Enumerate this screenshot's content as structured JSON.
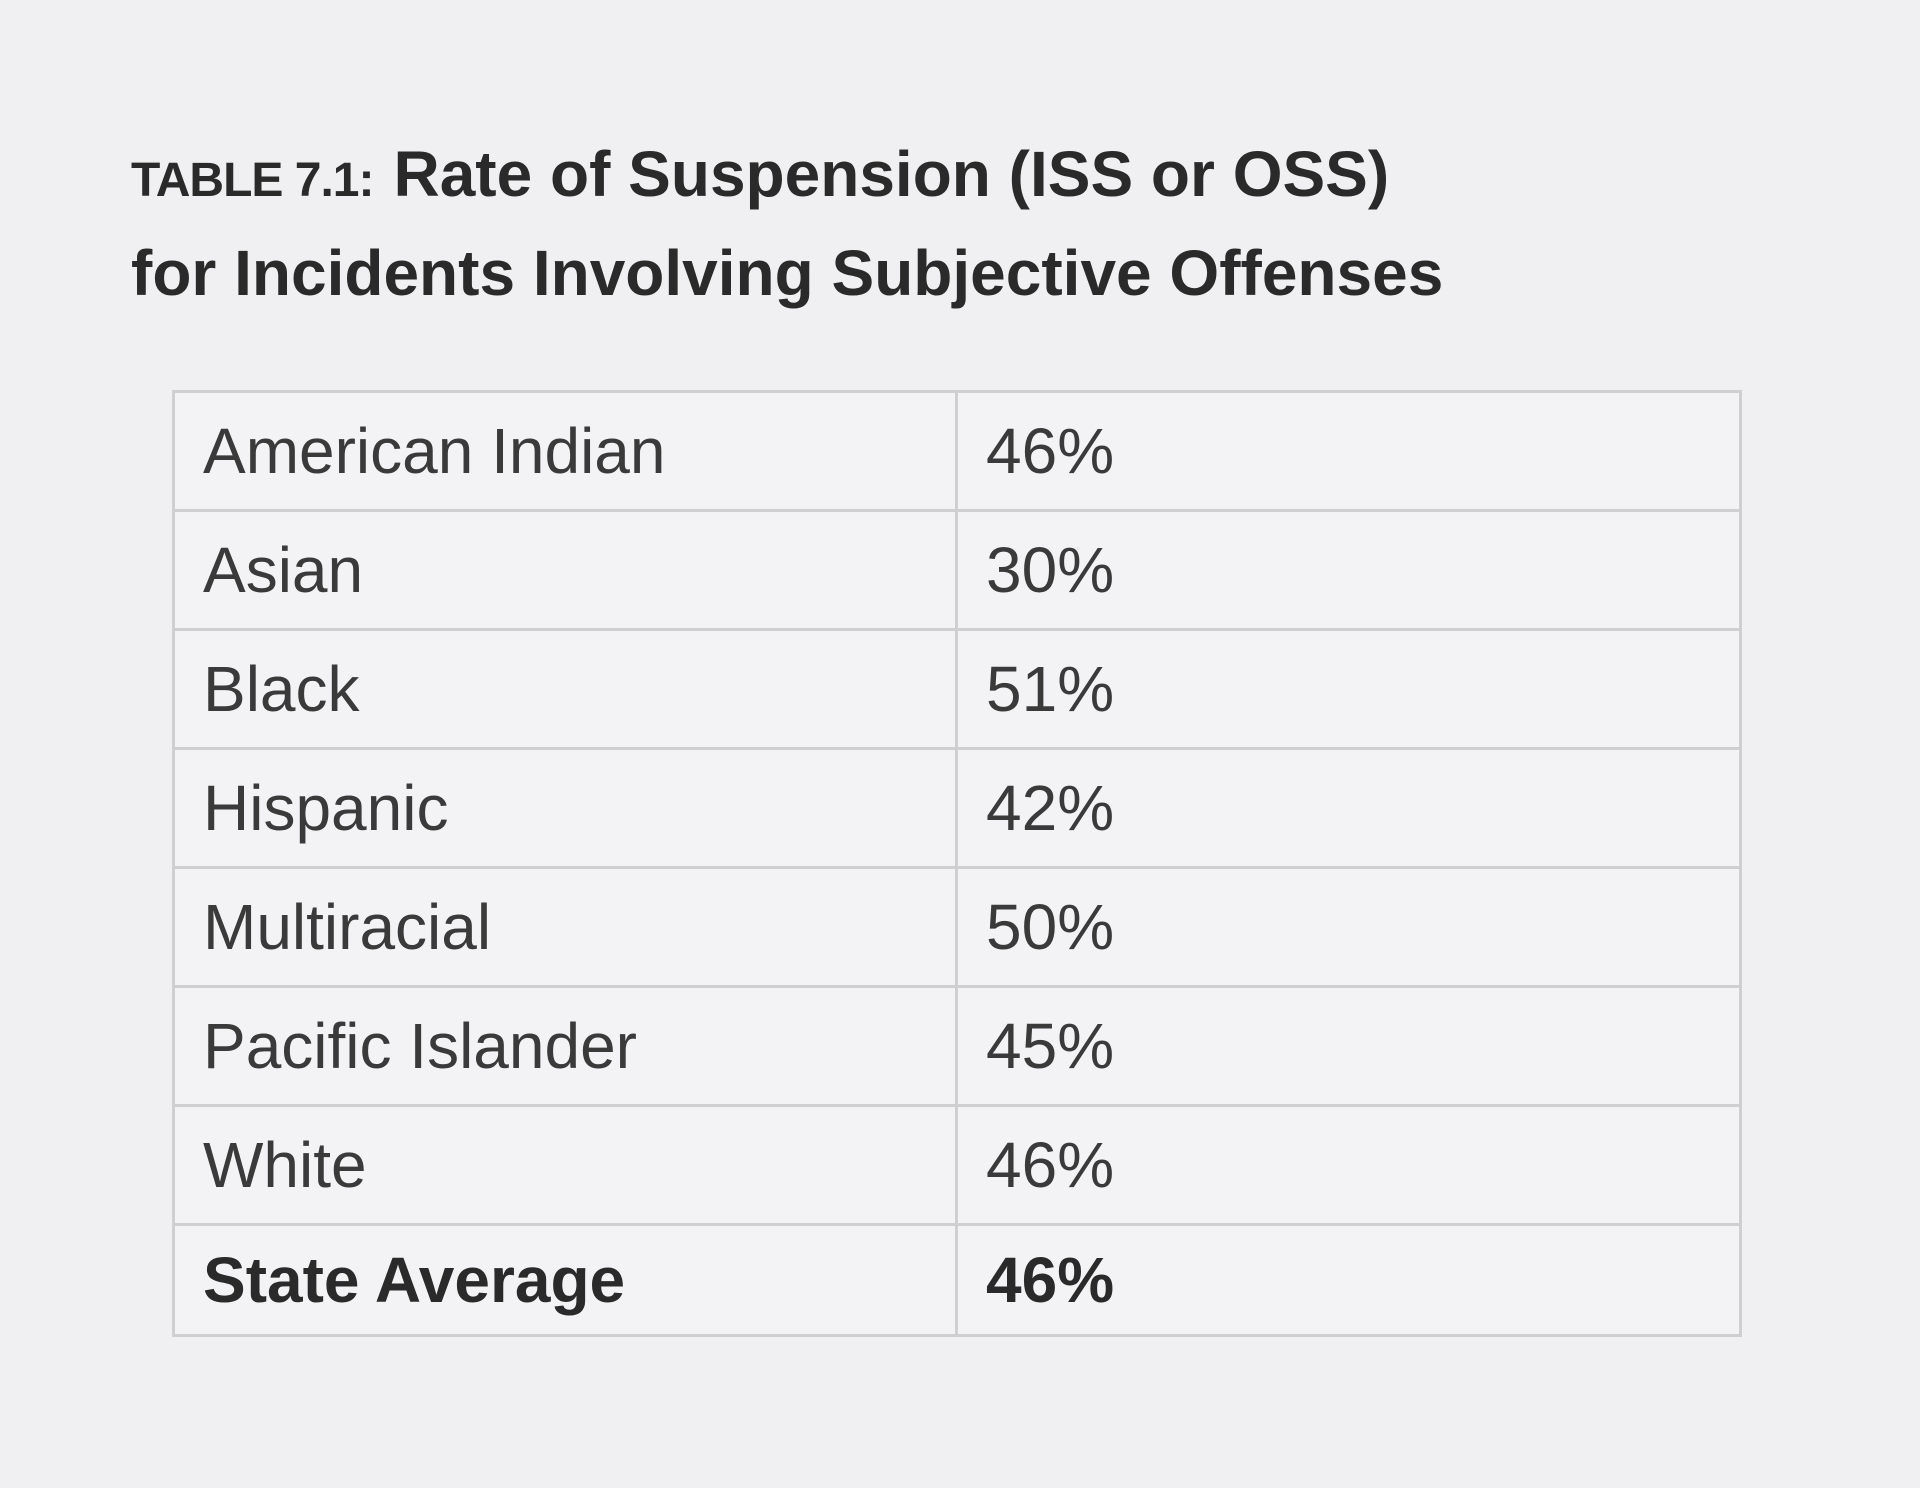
{
  "header": {
    "label": "TABLE 7.1:",
    "title": [
      "Rate of Suspension (ISS or OSS)",
      "for Incidents Involving Subjective Offenses"
    ]
  },
  "table": {
    "rows": [
      [
        "American Indian",
        "46%"
      ],
      [
        "Asian",
        "30%"
      ],
      [
        "Black",
        "51%"
      ],
      [
        "Hispanic",
        "42%"
      ],
      [
        "Multiracial",
        "50%"
      ],
      [
        "Pacific Islander",
        "45%"
      ],
      [
        "White",
        "46%"
      ],
      [
        "State Average",
        "46%"
      ]
    ]
  }
}
